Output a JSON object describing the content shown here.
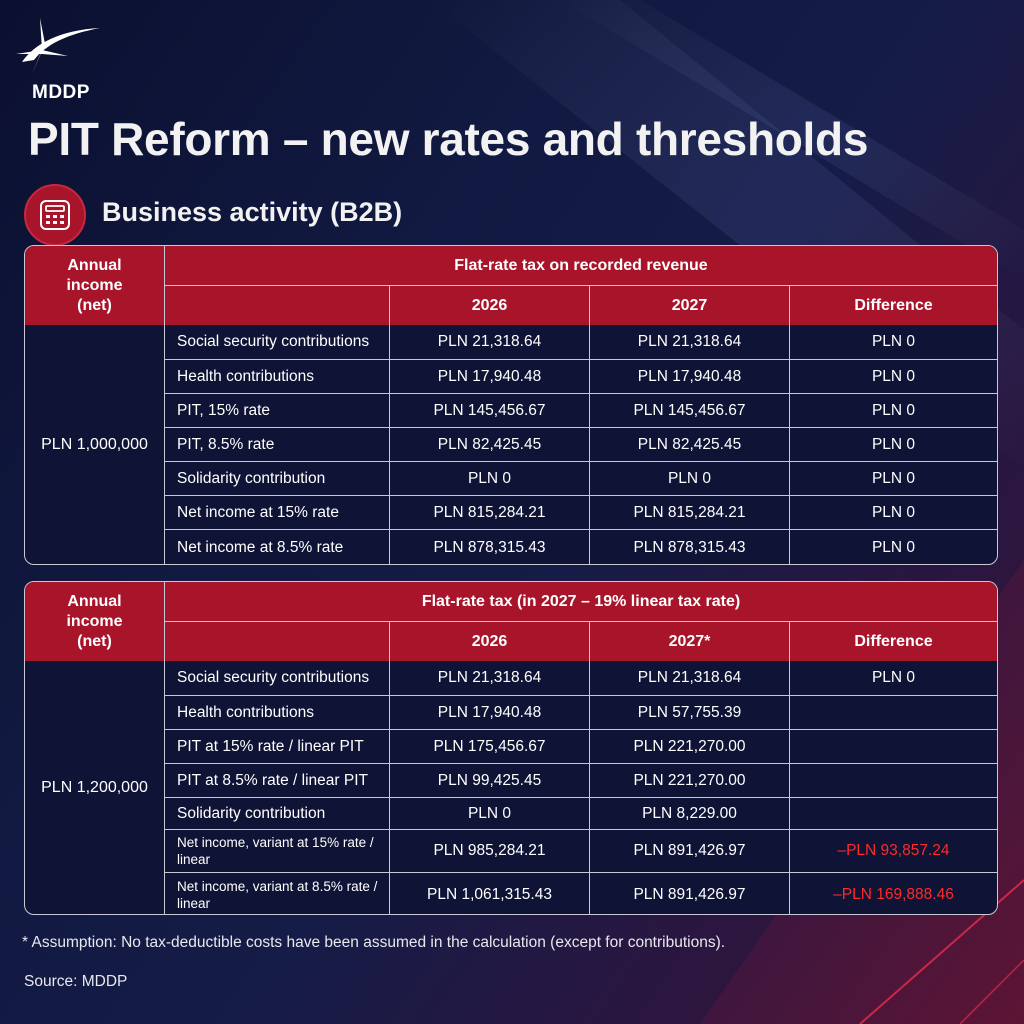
{
  "brand": {
    "logo_text": "MDDP"
  },
  "page_title": "PIT Reform – new rates and thresholds",
  "section": {
    "icon": "calculator-icon",
    "title": "Business activity (B2B)"
  },
  "colors": {
    "accent_red": "#a8142a",
    "negative_red": "#ff2a2a",
    "background": "#111a42"
  },
  "tables": [
    {
      "income_header": [
        "Annual",
        "income",
        "(net)"
      ],
      "title": "Flat-rate tax on recorded revenue",
      "columns": [
        "2026",
        "2027",
        "Difference"
      ],
      "income_value": "PLN 1,000,000",
      "rows": [
        {
          "label": "Social security contributions",
          "v2026": "PLN 21,318.64",
          "v2027": "PLN 21,318.64",
          "diff": "PLN 0"
        },
        {
          "label": "Health contributions",
          "v2026": "PLN 17,940.48",
          "v2027": "PLN 17,940.48",
          "diff": "PLN 0"
        },
        {
          "label": "PIT, 15% rate",
          "v2026": "PLN 145,456.67",
          "v2027": "PLN 145,456.67",
          "diff": "PLN 0"
        },
        {
          "label": "PIT, 8.5% rate",
          "v2026": "PLN 82,425.45",
          "v2027": "PLN 82,425.45",
          "diff": "PLN 0"
        },
        {
          "label": "Solidarity contribution",
          "v2026": "PLN 0",
          "v2027": "PLN 0",
          "diff": "PLN 0"
        },
        {
          "label": "Net income at 15% rate",
          "v2026": "PLN 815,284.21",
          "v2027": "PLN 815,284.21",
          "diff": "PLN 0"
        },
        {
          "label": "Net income at 8.5% rate",
          "v2026": "PLN 878,315.43",
          "v2027": "PLN 878,315.43",
          "diff": "PLN 0"
        }
      ]
    },
    {
      "income_header": [
        "Annual",
        "income",
        "(net)"
      ],
      "title": "Flat-rate tax (in 2027 – 19% linear tax rate)",
      "columns": [
        "2026",
        "2027*",
        "Difference"
      ],
      "income_value": "PLN 1,200,000",
      "rows": [
        {
          "label": "Social security contributions",
          "v2026": "PLN 21,318.64",
          "v2027": "PLN 21,318.64",
          "diff": "PLN 0"
        },
        {
          "label": "Health contributions",
          "v2026": "PLN 17,940.48",
          "v2027": "PLN 57,755.39",
          "diff": ""
        },
        {
          "label": "PIT at 15% rate / linear PIT",
          "v2026": "PLN 175,456.67",
          "v2027": "PLN 221,270.00",
          "diff": ""
        },
        {
          "label": "PIT at 8.5% rate / linear PIT",
          "v2026": "PLN 99,425.45",
          "v2027": "PLN 221,270.00",
          "diff": ""
        },
        {
          "label": "Solidarity contribution",
          "v2026": "PLN 0",
          "v2027": "PLN 8,229.00",
          "diff": ""
        },
        {
          "label": "Net income, variant at 15% rate / linear",
          "v2026": "PLN 985,284.21",
          "v2027": "PLN 891,426.97",
          "diff": "–PLN 93,857.24"
        },
        {
          "label": "Net income, variant at 8.5% rate / linear",
          "v2026": "PLN 1,061,315.43",
          "v2027": "PLN 891,426.97",
          "diff": "–PLN 169,888.46"
        }
      ]
    }
  ],
  "footnote": "* Assumption: No tax-deductible costs have been assumed in the calculation (except for contributions).",
  "source": "Source: MDDP"
}
